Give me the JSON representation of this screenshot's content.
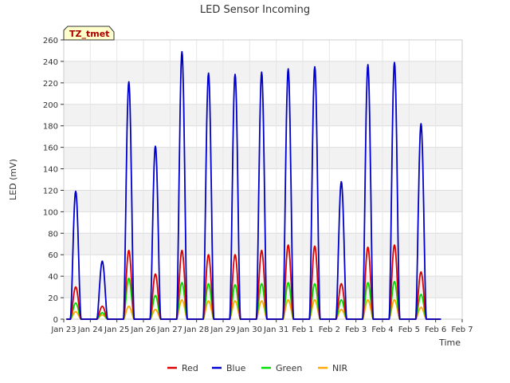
{
  "chart_data": {
    "type": "line",
    "title": "LED Sensor Incoming",
    "xlabel": "Time",
    "ylabel": "LED (mV)",
    "badge": "TZ_tmet",
    "ylim": [
      0,
      260
    ],
    "yticks": [
      0,
      20,
      40,
      60,
      80,
      100,
      120,
      140,
      160,
      180,
      200,
      220,
      240,
      260
    ],
    "xlim": [
      0,
      15
    ],
    "xticks": [
      {
        "pos": 0,
        "label": "Jan 23"
      },
      {
        "pos": 1,
        "label": "Jan 24"
      },
      {
        "pos": 2,
        "label": "Jan 25"
      },
      {
        "pos": 3,
        "label": "Jan 26"
      },
      {
        "pos": 4,
        "label": "Jan 27"
      },
      {
        "pos": 5,
        "label": "Jan 28"
      },
      {
        "pos": 6,
        "label": "Jan 29"
      },
      {
        "pos": 7,
        "label": "Jan 30"
      },
      {
        "pos": 8,
        "label": "Jan 31"
      },
      {
        "pos": 9,
        "label": "Feb 1"
      },
      {
        "pos": 10,
        "label": "Feb 2"
      },
      {
        "pos": 11,
        "label": "Feb 3"
      },
      {
        "pos": 12,
        "label": "Feb 4"
      },
      {
        "pos": 13,
        "label": "Feb 5"
      },
      {
        "pos": 14,
        "label": "Feb 6"
      },
      {
        "pos": 15,
        "label": "Feb 7"
      }
    ],
    "series": [
      {
        "name": "Red",
        "color": "#dd0000",
        "peaks": [
          30,
          12,
          64,
          42,
          64,
          60,
          60,
          64,
          69,
          68,
          33,
          67,
          69,
          44
        ]
      },
      {
        "name": "Blue",
        "color": "#0000cc",
        "peaks": [
          119,
          54,
          221,
          161,
          249,
          229,
          228,
          230,
          233,
          235,
          128,
          237,
          239,
          182
        ]
      },
      {
        "name": "Green",
        "color": "#00dd00",
        "peaks": [
          15,
          6,
          38,
          22,
          34,
          33,
          32,
          33,
          34,
          33,
          18,
          34,
          35,
          23
        ]
      },
      {
        "name": "NIR",
        "color": "#ffaa00",
        "peaks": [
          7,
          4,
          12,
          9,
          18,
          17,
          17,
          17,
          18,
          18,
          9,
          18,
          18,
          11
        ]
      }
    ],
    "day_positions": [
      0.45,
      1.45,
      2.45,
      3.45,
      4.45,
      5.45,
      6.45,
      7.45,
      8.45,
      9.45,
      10.45,
      11.45,
      12.45,
      13.45
    ]
  },
  "legend": [
    {
      "label": "Red",
      "color": "#dd0000"
    },
    {
      "label": "Blue",
      "color": "#0000cc"
    },
    {
      "label": "Green",
      "color": "#00dd00"
    },
    {
      "label": "NIR",
      "color": "#ffaa00"
    }
  ]
}
